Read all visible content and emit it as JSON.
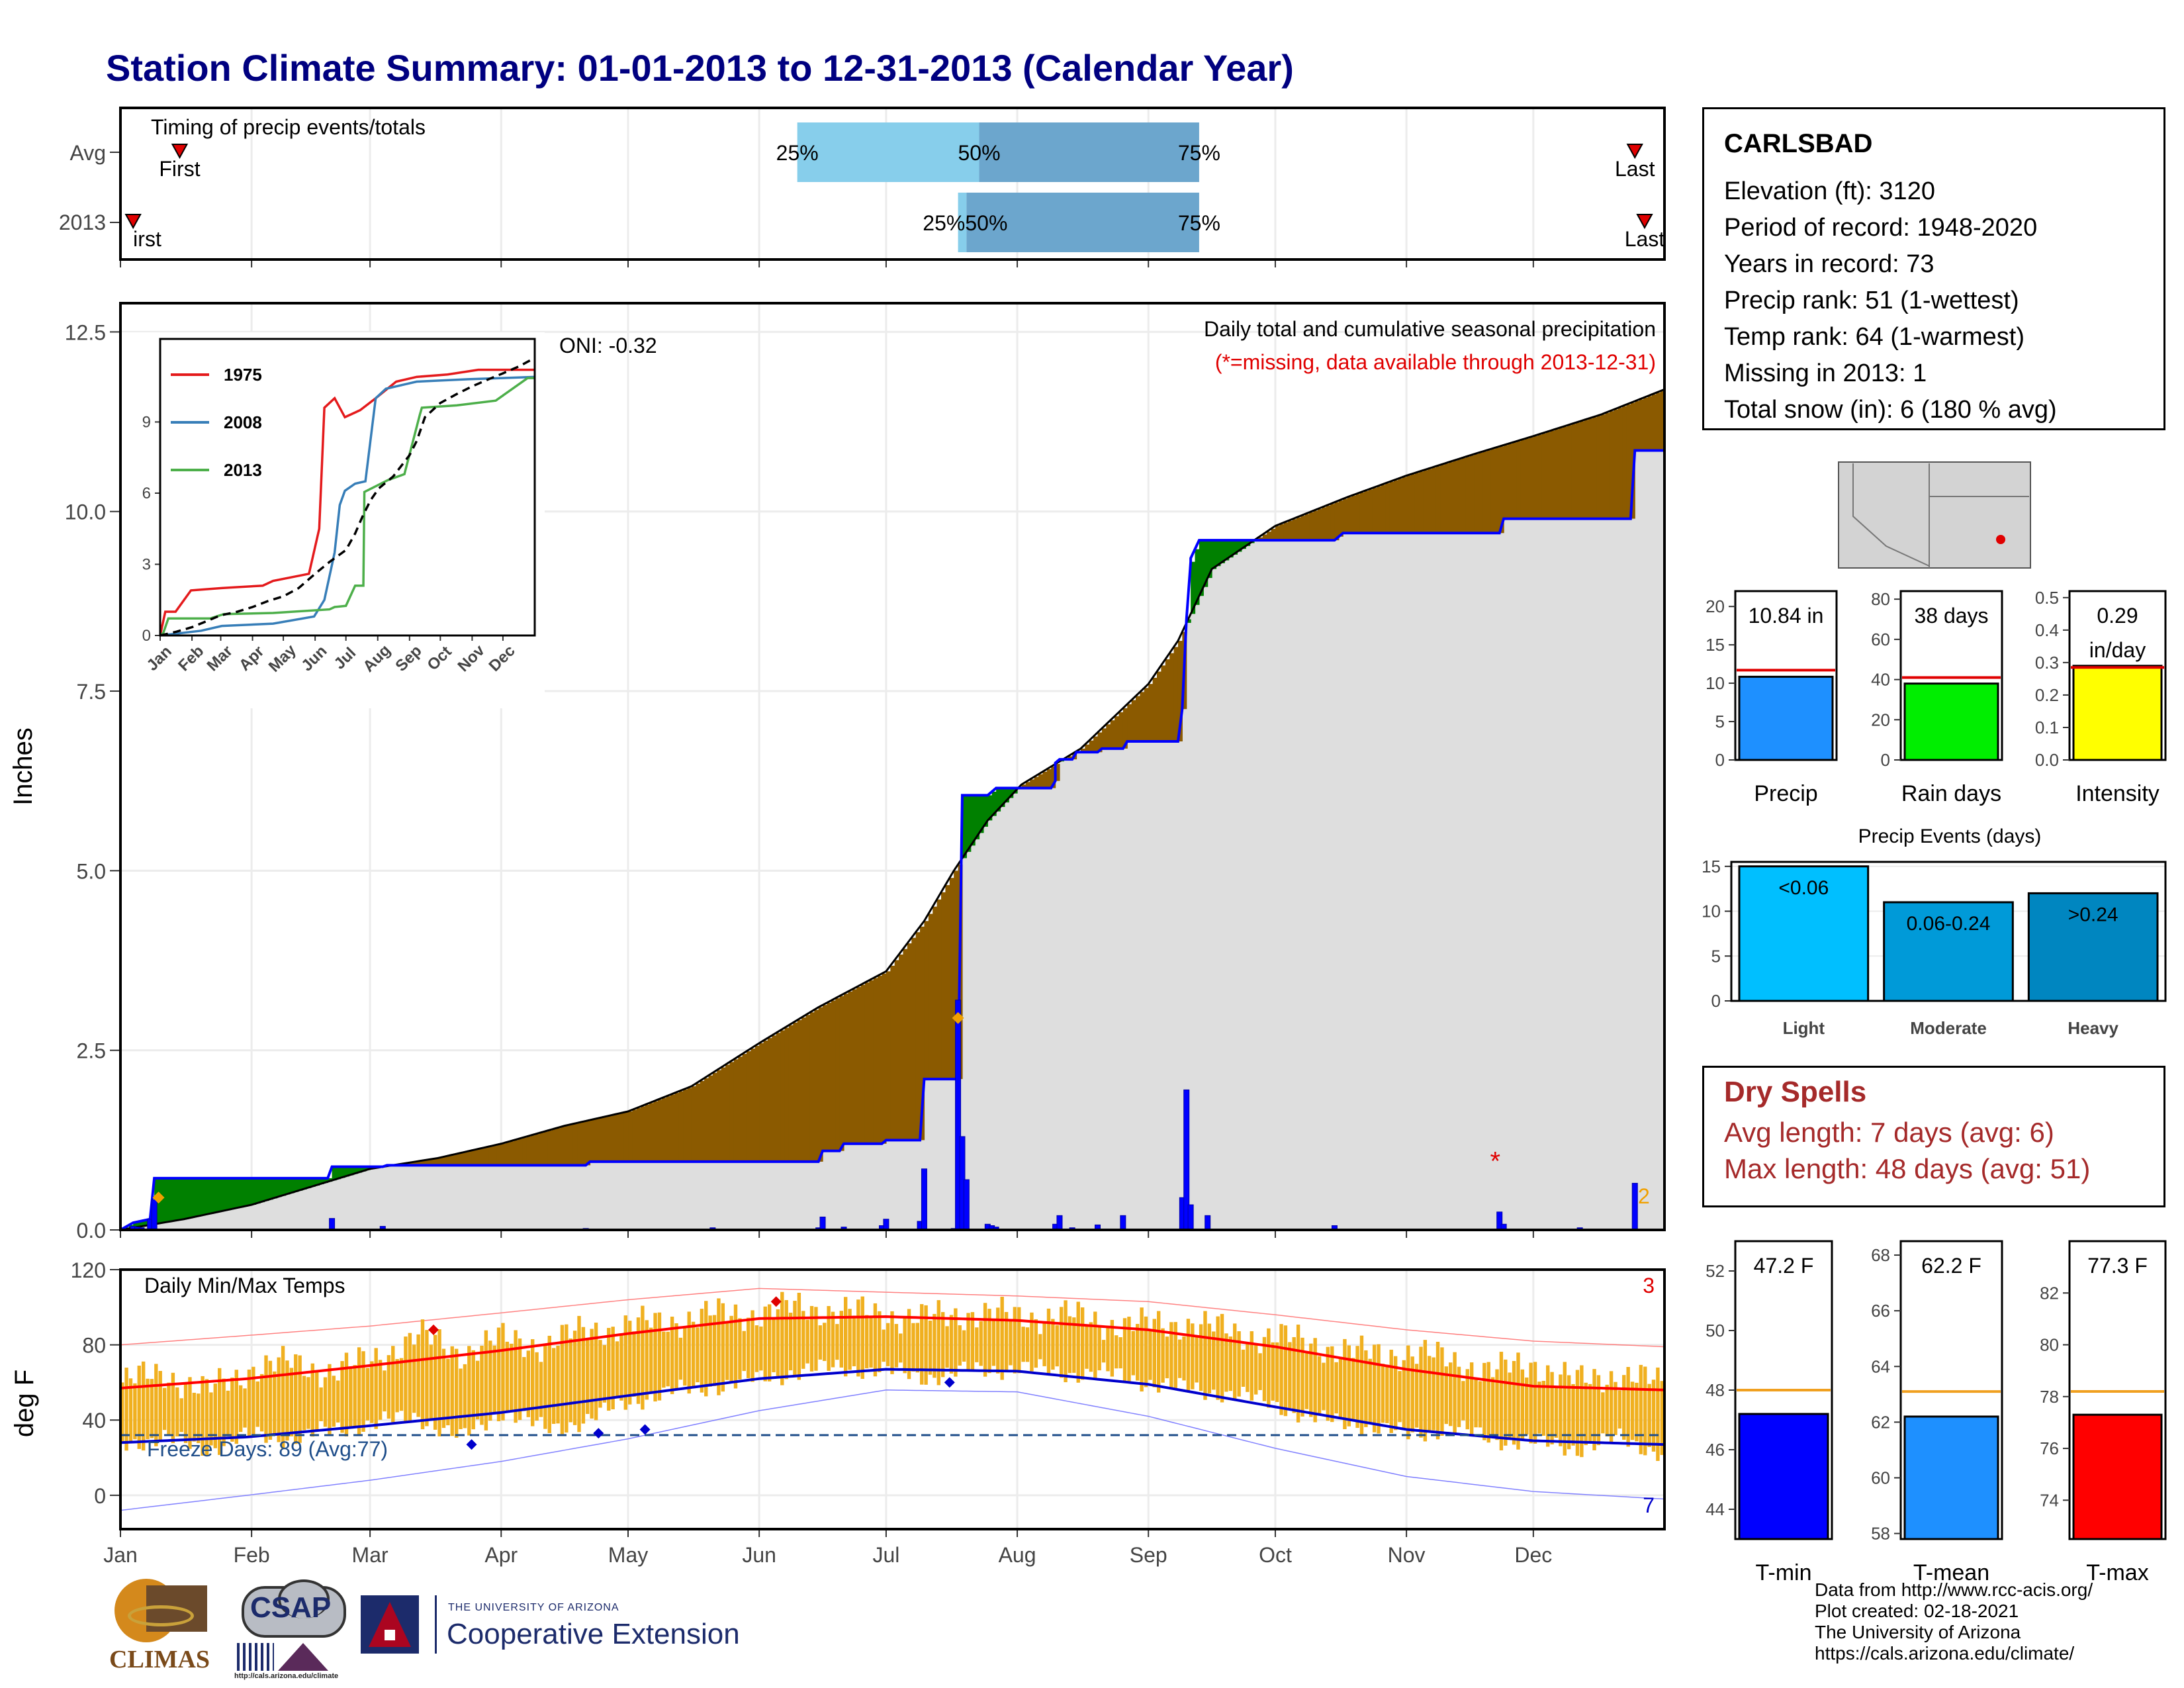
{
  "title": "Station Climate Summary: 01-01-2013 to 12-31-2013 (Calendar Year)",
  "timing": {
    "title": "Timing of precip events/totals",
    "row_labels": [
      "Avg",
      "2013"
    ],
    "first_label": "First",
    "first_label_2013": "irst",
    "last_label": "Last",
    "pct_25": "25%",
    "pct_50": "50%",
    "pct_75": "75%",
    "overlap_2013": "25%50%",
    "avg_first_day": 14,
    "avg_25_day": 160,
    "avg_50_day": 203,
    "avg_75_day": 255,
    "avg_last_day": 358,
    "y2013_first_day": 3,
    "y2013_25_day": 198,
    "y2013_50_day": 200,
    "y2013_75_day": 255,
    "y2013_last_day": 365
  },
  "station": {
    "name": "CARLSBAD",
    "lines": [
      "Elevation (ft): 3120",
      "Period of record: 1948-2020",
      "Years in record: 73",
      "Precip rank: 51 (1-wettest)",
      "Temp rank: 64 (1-warmest)",
      "Missing in 2013: 1",
      "Total snow (in): 6 (180 % avg)"
    ]
  },
  "dry_spells": {
    "title": "Dry Spells",
    "avg_line": "Avg length: 7 days (avg: 6)",
    "max_line": "Max length: 48 days (avg: 51)"
  },
  "credits": [
    "Data from http://www.rcc-acis.org/",
    "Plot created: 02-18-2021",
    "The University of Arizona",
    "https://cals.arizona.edu/climate/"
  ],
  "logos": {
    "climas": "CLIMAS",
    "csap": "CSAP",
    "csap_url": "http://cals.arizona.edu/climate",
    "ua_small": "THE UNIVERSITY OF ARIZONA",
    "ua_big": "Cooperative Extension"
  },
  "colors": {
    "brown": "#8b5a00",
    "green": "#008000",
    "blue": "#0000ff",
    "gold": "#f0b020",
    "grey_fill": "#dedede",
    "light_blue": "#87ceeb",
    "mid_blue": "#6ca6cd",
    "title_blue": "#000080",
    "dry_red": "#a52a2a"
  },
  "chart_data": {
    "type": "area",
    "months": [
      "Jan",
      "Feb",
      "Mar",
      "Apr",
      "May",
      "Jun",
      "Jul",
      "Aug",
      "Sep",
      "Oct",
      "Nov",
      "Dec"
    ],
    "precip": {
      "ylabel": "Inches",
      "ylim": [
        0,
        12.9
      ],
      "yticks": [
        "0.0",
        "2.5",
        "5.0",
        "7.5",
        "10.0",
        "12.5"
      ],
      "annotation_main": "Daily total and cumulative seasonal precipitation",
      "annotation_missing": "(*=missing, data available through 2013-12-31)",
      "oni": "ONI: -0.32",
      "count_label": "2",
      "normal_cumulative": {
        "day": [
          0,
          15,
          31,
          45,
          59,
          75,
          90,
          105,
          120,
          135,
          151,
          165,
          181,
          190,
          197,
          205,
          213,
          227,
          243,
          250,
          258,
          273,
          290,
          304,
          320,
          334,
          350,
          365
        ],
        "value": [
          0.0,
          0.15,
          0.35,
          0.6,
          0.85,
          1.0,
          1.2,
          1.45,
          1.65,
          2.0,
          2.6,
          3.1,
          3.6,
          4.3,
          5.0,
          5.7,
          6.2,
          6.7,
          7.6,
          8.2,
          9.2,
          9.8,
          10.2,
          10.5,
          10.8,
          11.05,
          11.35,
          11.7
        ]
      },
      "cumulative_2013": {
        "day": [
          0,
          3,
          7,
          8,
          49,
          50,
          62,
          63,
          110,
          111,
          165,
          166,
          170,
          171,
          180,
          181,
          189,
          190,
          198,
          199,
          205,
          207,
          220,
          221,
          221,
          222,
          225,
          226,
          231,
          232,
          237,
          238,
          250,
          251,
          252,
          253,
          253,
          255,
          255,
          287,
          289,
          326,
          327,
          357,
          358,
          365
        ],
        "value": [
          0.0,
          0.1,
          0.15,
          0.72,
          0.72,
          0.88,
          0.88,
          0.9,
          0.9,
          0.95,
          0.95,
          1.1,
          1.1,
          1.2,
          1.2,
          1.25,
          1.25,
          2.1,
          2.1,
          6.05,
          6.05,
          6.15,
          6.15,
          6.25,
          6.5,
          6.55,
          6.55,
          6.65,
          6.65,
          6.7,
          6.7,
          6.8,
          6.8,
          7.25,
          8.5,
          9.3,
          9.35,
          9.6,
          9.6,
          9.6,
          9.7,
          9.7,
          9.9,
          9.9,
          10.85,
          10.85
        ]
      },
      "daily_bars": {
        "day": [
          3,
          4,
          5,
          7,
          8,
          50,
          62,
          110,
          140,
          165,
          166,
          171,
          180,
          181,
          189,
          190,
          197,
          198,
          199,
          200,
          205,
          206,
          207,
          221,
          222,
          225,
          231,
          237,
          251,
          252,
          253,
          257,
          287,
          326,
          327,
          345,
          358
        ],
        "value": [
          0.05,
          0.04,
          0.03,
          0.15,
          0.42,
          0.16,
          0.05,
          0.02,
          0.03,
          0.03,
          0.18,
          0.04,
          0.06,
          0.15,
          0.12,
          0.85,
          0.02,
          3.2,
          1.3,
          0.7,
          0.08,
          0.06,
          0.04,
          0.08,
          0.2,
          0.03,
          0.07,
          0.2,
          0.45,
          1.95,
          0.35,
          0.2,
          0.06,
          0.25,
          0.08,
          0.03,
          0.65
        ]
      },
      "record_points": [
        {
          "day": 9,
          "value": 0.45
        },
        {
          "day": 198,
          "value": 2.95
        }
      ],
      "missing_point": {
        "day": 325,
        "value": 1.0
      },
      "inset": {
        "yticks": [
          "0",
          "3",
          "6",
          "9"
        ],
        "ylim": [
          0,
          12.5
        ],
        "series": [
          {
            "name": "1975",
            "day": [
              0,
              5,
              15,
              30,
              60,
              100,
              110,
              145,
              155,
              160,
              170,
              180,
              190,
              195,
              210,
              230,
              250,
              280,
              310,
              365
            ],
            "value": [
              0.0,
              1.0,
              1.0,
              1.9,
              2.0,
              2.1,
              2.3,
              2.6,
              4.5,
              9.6,
              10.0,
              9.2,
              9.4,
              9.5,
              10.0,
              10.7,
              10.9,
              11.0,
              11.2,
              11.2
            ]
          },
          {
            "name": "2008",
            "day": [
              0,
              40,
              60,
              110,
              150,
              160,
              170,
              175,
              180,
              190,
              200,
              210,
              220,
              240,
              250,
              300,
              365
            ],
            "value": [
              0.0,
              0.2,
              0.4,
              0.5,
              0.8,
              1.5,
              3.5,
              5.5,
              6.1,
              6.4,
              6.5,
              10.0,
              10.4,
              10.6,
              10.7,
              10.8,
              10.9
            ]
          },
          {
            "name": "2013",
            "day": [
              0,
              3,
              8,
              49,
              62,
              110,
              165,
              170,
              181,
              190,
              198,
              199,
              222,
              238,
              253,
              255,
              289,
              327,
              358,
              365
            ],
            "value": [
              0.0,
              0.1,
              0.72,
              0.72,
              0.9,
              0.95,
              1.1,
              1.2,
              1.25,
              2.1,
              2.1,
              6.05,
              6.55,
              6.8,
              9.3,
              9.6,
              9.7,
              9.9,
              10.85,
              10.85
            ]
          }
        ]
      }
    },
    "temps": {
      "ylabel": "deg F",
      "title": "Daily Min/Max Temps",
      "ylim": [
        -18,
        120
      ],
      "yticks": [
        "0",
        "40",
        "80",
        "120"
      ],
      "freeze_line": 32,
      "freeze_label": "Freeze Days: 89 (Avg:77)",
      "count_max": "3",
      "count_min": "7",
      "normal_max": {
        "day": [
          0,
          30,
          59,
          90,
          120,
          151,
          181,
          212,
          243,
          273,
          304,
          334,
          365
        ],
        "value": [
          57,
          62,
          69,
          77,
          86,
          94,
          95,
          93,
          88,
          79,
          67,
          58,
          56
        ]
      },
      "normal_min": {
        "day": [
          0,
          30,
          59,
          90,
          120,
          151,
          181,
          212,
          243,
          273,
          304,
          334,
          365
        ],
        "value": [
          28,
          31,
          37,
          44,
          53,
          62,
          67,
          66,
          59,
          47,
          35,
          29,
          27
        ]
      },
      "record_max": {
        "day": [
          0,
          30,
          59,
          90,
          120,
          151,
          181,
          212,
          243,
          273,
          304,
          334,
          365
        ],
        "value": [
          80,
          85,
          90,
          97,
          104,
          110,
          108,
          106,
          103,
          96,
          88,
          82,
          79
        ]
      },
      "record_min": {
        "day": [
          0,
          30,
          59,
          90,
          120,
          151,
          181,
          212,
          243,
          273,
          304,
          334,
          365
        ],
        "value": [
          -8,
          0,
          8,
          18,
          30,
          45,
          56,
          55,
          42,
          25,
          10,
          2,
          -2
        ]
      },
      "daily_max": {
        "day": [
          0,
          10,
          20,
          31,
          40,
          50,
          59,
          70,
          80,
          90,
          100,
          110,
          120,
          130,
          140,
          151,
          160,
          170,
          181,
          190,
          200,
          212,
          222,
          232,
          243,
          253,
          263,
          273,
          283,
          293,
          304,
          314,
          324,
          334,
          344,
          354,
          365
        ],
        "value": [
          60,
          65,
          55,
          68,
          70,
          66,
          72,
          85,
          76,
          83,
          80,
          88,
          90,
          93,
          96,
          97,
          100,
          98,
          96,
          94,
          97,
          95,
          96,
          92,
          90,
          92,
          86,
          84,
          80,
          75,
          76,
          72,
          66,
          70,
          60,
          65,
          58
        ]
      },
      "daily_min": {
        "day": [
          0,
          10,
          20,
          31,
          40,
          50,
          59,
          70,
          80,
          90,
          100,
          110,
          120,
          130,
          140,
          151,
          160,
          170,
          181,
          190,
          200,
          212,
          222,
          232,
          243,
          253,
          263,
          273,
          283,
          293,
          304,
          314,
          324,
          334,
          344,
          354,
          365
        ],
        "value": [
          28,
          30,
          25,
          32,
          30,
          35,
          38,
          42,
          30,
          45,
          35,
          40,
          50,
          55,
          58,
          62,
          66,
          68,
          66,
          63,
          66,
          68,
          65,
          65,
          60,
          56,
          54,
          48,
          40,
          38,
          32,
          36,
          30,
          28,
          25,
          30,
          22
        ]
      },
      "record_high_points": [
        {
          "day": 74,
          "value": 88
        },
        {
          "day": 155,
          "value": 103
        }
      ],
      "record_low_points": [
        {
          "day": 83,
          "value": 27
        },
        {
          "day": 113,
          "value": 33
        },
        {
          "day": 124,
          "value": 35
        },
        {
          "day": 196,
          "value": 60
        }
      ]
    },
    "precip_totals": {
      "yticks": [
        "0",
        "5",
        "10",
        "15",
        "20"
      ],
      "ylim": [
        0,
        22
      ],
      "value": 10.84,
      "normal": 11.7,
      "label": "10.84 in",
      "xlabel": "Precip"
    },
    "rain_days": {
      "yticks": [
        "0",
        "20",
        "40",
        "60",
        "80"
      ],
      "ylim": [
        0,
        84
      ],
      "value": 38,
      "normal": 41,
      "label": "38 days",
      "xlabel": "Rain days"
    },
    "intensity": {
      "yticks": [
        "0.0",
        "0.1",
        "0.2",
        "0.3",
        "0.4",
        "0.5"
      ],
      "ylim": [
        0,
        0.52
      ],
      "value": 0.29,
      "normal": 0.285,
      "label_value": "0.29",
      "label_unit": "in/day",
      "xlabel": "Intensity"
    },
    "precip_events": {
      "title": "Precip Events (days)",
      "yticks": [
        "0",
        "5",
        "10",
        "15"
      ],
      "ylim": [
        0,
        15.5
      ],
      "categories": [
        "Light",
        "Moderate",
        "Heavy"
      ],
      "bar_labels": [
        "<0.06",
        "0.06-0.24",
        ">0.24"
      ],
      "values": [
        15,
        11,
        12
      ]
    },
    "tmin": {
      "yticks": [
        "44",
        "46",
        "48",
        "50",
        "52"
      ],
      "ylim": [
        43,
        53
      ],
      "value": 47.2,
      "normal": 48.0,
      "label": "47.2 F",
      "xlabel": "T-min"
    },
    "tmean": {
      "yticks": [
        "58",
        "60",
        "62",
        "64",
        "66",
        "68"
      ],
      "ylim": [
        57.8,
        68.5
      ],
      "value": 62.2,
      "normal": 63.1,
      "label": "62.2 F",
      "xlabel": "T-mean"
    },
    "tmax": {
      "yticks": [
        "74",
        "76",
        "78",
        "80",
        "82"
      ],
      "ylim": [
        72.5,
        84
      ],
      "value": 77.3,
      "normal": 78.2,
      "label": "77.3 F",
      "xlabel": "T-max"
    }
  }
}
